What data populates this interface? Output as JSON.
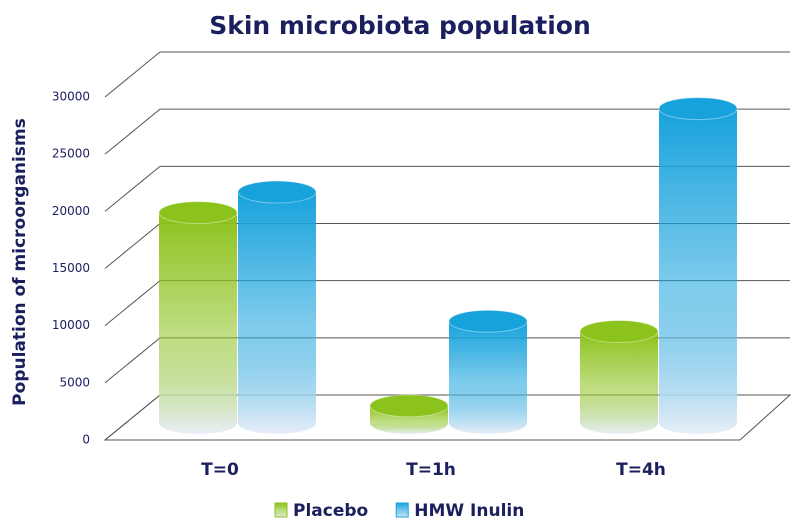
{
  "chart_data": {
    "type": "bar3d",
    "title": "Skin microbiota population",
    "y_label": "Population of microorganisms",
    "categories": [
      "T=0",
      "T=1h",
      "T=4h"
    ],
    "series": [
      {
        "name": "Placebo",
        "color": "#8cc21c",
        "values": [
          18400,
          1500,
          8000
        ]
      },
      {
        "name": "HMW Inulin",
        "color": "#17a2dc",
        "values": [
          20200,
          8900,
          27500
        ]
      }
    ],
    "ylim": [
      0,
      30000
    ],
    "yticks": [
      0,
      5000,
      10000,
      15000,
      20000,
      25000,
      30000
    ],
    "grid": true,
    "legend": "bottom"
  }
}
